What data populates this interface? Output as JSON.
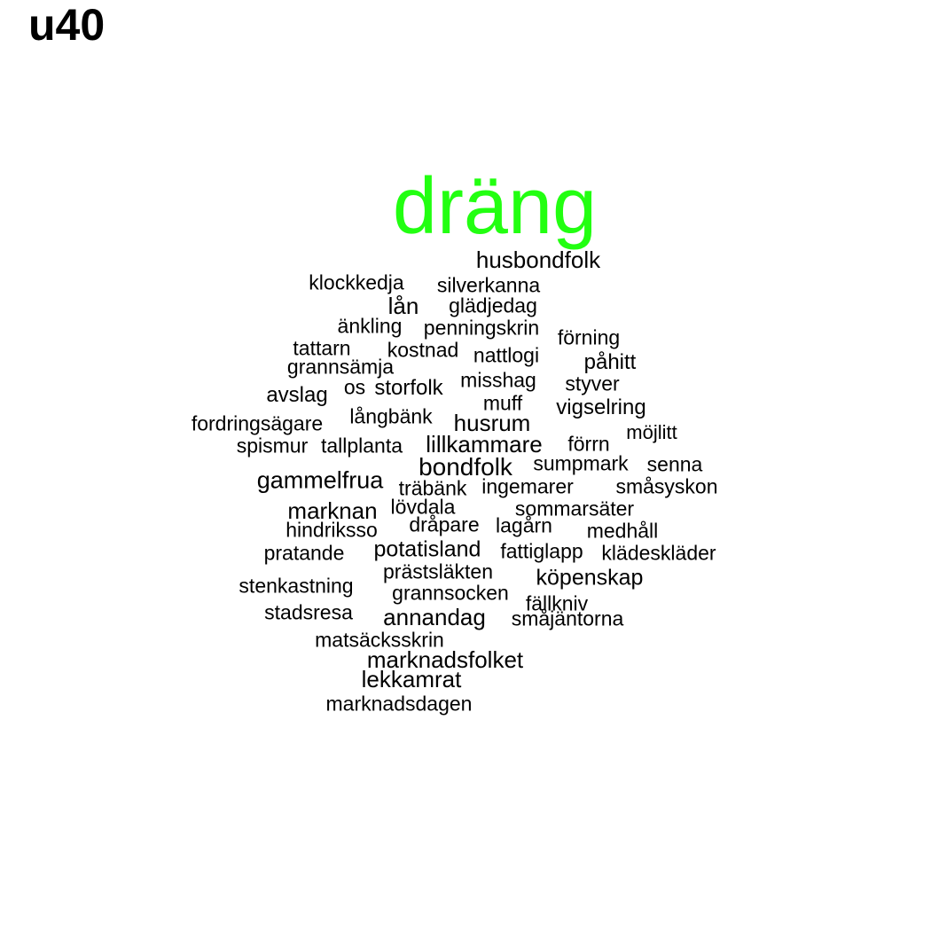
{
  "panel_label": "u40",
  "colors": {
    "primary_word": "#22ff11",
    "default_word": "#000000"
  },
  "words": [
    {
      "text": "dräng",
      "highlight": true
    },
    {
      "text": "husbondfolk"
    },
    {
      "text": "klockkedja"
    },
    {
      "text": "silverkanna"
    },
    {
      "text": "lån"
    },
    {
      "text": "glädjedag"
    },
    {
      "text": "änkling"
    },
    {
      "text": "penningskrin"
    },
    {
      "text": "förning"
    },
    {
      "text": "tattarn"
    },
    {
      "text": "kostnad"
    },
    {
      "text": "nattlogi"
    },
    {
      "text": "påhitt"
    },
    {
      "text": "grannsämja"
    },
    {
      "text": "os"
    },
    {
      "text": "storfolk"
    },
    {
      "text": "misshag"
    },
    {
      "text": "styver"
    },
    {
      "text": "avslag"
    },
    {
      "text": "muff"
    },
    {
      "text": "vigselring"
    },
    {
      "text": "långbänk"
    },
    {
      "text": "husrum"
    },
    {
      "text": "fordringsägare"
    },
    {
      "text": "möjlitt"
    },
    {
      "text": "spismur"
    },
    {
      "text": "tallplanta"
    },
    {
      "text": "lillkammare"
    },
    {
      "text": "förrn"
    },
    {
      "text": "bondfolk"
    },
    {
      "text": "sumpmark"
    },
    {
      "text": "senna"
    },
    {
      "text": "gammelfrua"
    },
    {
      "text": "träbänk"
    },
    {
      "text": "ingemarer"
    },
    {
      "text": "småsyskon"
    },
    {
      "text": "marknan"
    },
    {
      "text": "lövdala"
    },
    {
      "text": "sommarsäter"
    },
    {
      "text": "dråpare"
    },
    {
      "text": "lagårn"
    },
    {
      "text": "hindriksso"
    },
    {
      "text": "medhåll"
    },
    {
      "text": "potatisland"
    },
    {
      "text": "fattiglapp"
    },
    {
      "text": "pratande"
    },
    {
      "text": "klädeskläder"
    },
    {
      "text": "prästsläkten"
    },
    {
      "text": "köpenskap"
    },
    {
      "text": "stenkastning"
    },
    {
      "text": "grannsocken"
    },
    {
      "text": "fällkniv"
    },
    {
      "text": "stadsresa"
    },
    {
      "text": "annandag"
    },
    {
      "text": "småjäntorna"
    },
    {
      "text": "matsäcksskrin"
    },
    {
      "text": "marknadsfolket"
    },
    {
      "text": "lekkamrat"
    },
    {
      "text": "marknadsdagen"
    }
  ]
}
